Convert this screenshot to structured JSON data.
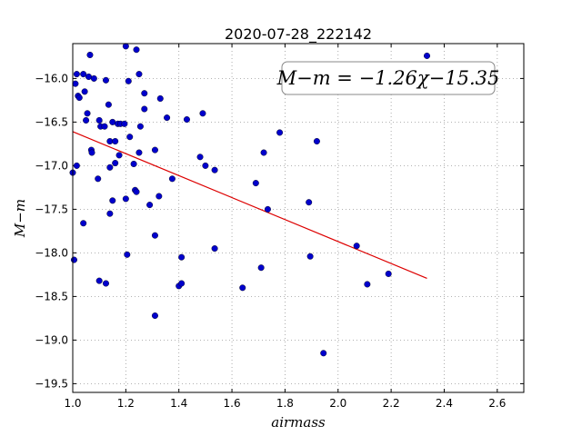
{
  "chart_data": {
    "type": "scatter",
    "title": "2020-07-28_222142",
    "xlabel": "airmass",
    "ylabel": "M−m",
    "xlim": [
      1.0,
      2.7
    ],
    "ylim": [
      -19.6,
      -15.6
    ],
    "x_ticks": [
      1.0,
      1.2,
      1.4,
      1.6,
      1.8,
      2.0,
      2.2,
      2.4,
      2.6
    ],
    "x_tick_labels": [
      "1.0",
      "1.2",
      "1.4",
      "1.6",
      "1.8",
      "2.0",
      "2.2",
      "2.4",
      "2.6"
    ],
    "y_ticks": [
      -16.0,
      -16.5,
      -17.0,
      -17.5,
      -18.0,
      -18.5,
      -19.0,
      -19.5
    ],
    "y_tick_labels": [
      "−16.0",
      "−16.5",
      "−17.0",
      "−17.5",
      "−18.0",
      "−18.5",
      "−19.0",
      "−19.5"
    ],
    "grid": true,
    "point_color": "#0000cc",
    "fit_color": "#dd0000",
    "annotation": "M−m = −1.26χ−15.35",
    "fit": {
      "slope": -1.26,
      "intercept": -15.35,
      "x_range": [
        1.0,
        2.335
      ]
    },
    "points": [
      [
        1.01,
        -16.06
      ],
      [
        1.015,
        -15.95
      ],
      [
        1.02,
        -16.2
      ],
      [
        1.025,
        -16.22
      ],
      [
        1.04,
        -15.95
      ],
      [
        1.045,
        -16.15
      ],
      [
        1.05,
        -16.48
      ],
      [
        1.055,
        -16.4
      ],
      [
        1.06,
        -15.98
      ],
      [
        1.065,
        -15.73
      ],
      [
        1.07,
        -16.82
      ],
      [
        1.072,
        -16.85
      ],
      [
        1.08,
        -16.0
      ],
      [
        1.1,
        -16.48
      ],
      [
        1.105,
        -16.55
      ],
      [
        1.12,
        -16.55
      ],
      [
        1.125,
        -16.02
      ],
      [
        1.135,
        -16.3
      ],
      [
        1.14,
        -16.72
      ],
      [
        1.15,
        -16.5
      ],
      [
        1.16,
        -16.72
      ],
      [
        1.17,
        -16.52
      ],
      [
        1.18,
        -16.52
      ],
      [
        1.195,
        -16.52
      ],
      [
        1.2,
        -15.63
      ],
      [
        1.21,
        -16.03
      ],
      [
        1.215,
        -16.67
      ],
      [
        1.24,
        -15.67
      ],
      [
        1.25,
        -15.95
      ],
      [
        1.255,
        -16.55
      ],
      [
        1.27,
        -16.35
      ],
      [
        1.27,
        -16.17
      ],
      [
        1.33,
        -16.23
      ],
      [
        1.355,
        -16.45
      ],
      [
        1.43,
        -16.47
      ],
      [
        1.49,
        -16.4
      ],
      [
        1.0,
        -17.08
      ],
      [
        1.015,
        -17.0
      ],
      [
        1.04,
        -17.66
      ],
      [
        1.095,
        -17.15
      ],
      [
        1.14,
        -17.02
      ],
      [
        1.15,
        -17.4
      ],
      [
        1.16,
        -16.97
      ],
      [
        1.175,
        -16.88
      ],
      [
        1.14,
        -17.55
      ],
      [
        1.2,
        -17.38
      ],
      [
        1.23,
        -16.98
      ],
      [
        1.235,
        -17.28
      ],
      [
        1.24,
        -17.3
      ],
      [
        1.25,
        -16.85
      ],
      [
        1.29,
        -17.45
      ],
      [
        1.31,
        -16.82
      ],
      [
        1.325,
        -17.35
      ],
      [
        1.375,
        -17.15
      ],
      [
        1.48,
        -16.9
      ],
      [
        1.5,
        -17.0
      ],
      [
        1.535,
        -17.05
      ],
      [
        1.69,
        -17.2
      ],
      [
        1.72,
        -16.85
      ],
      [
        1.78,
        -16.62
      ],
      [
        1.735,
        -17.5
      ],
      [
        1.89,
        -17.42
      ],
      [
        1.92,
        -16.72
      ],
      [
        1.005,
        -18.08
      ],
      [
        1.1,
        -18.32
      ],
      [
        1.125,
        -18.35
      ],
      [
        1.205,
        -18.02
      ],
      [
        1.31,
        -17.8
      ],
      [
        1.31,
        -18.72
      ],
      [
        1.4,
        -18.38
      ],
      [
        1.41,
        -18.35
      ],
      [
        1.41,
        -18.05
      ],
      [
        1.535,
        -17.95
      ],
      [
        1.64,
        -18.4
      ],
      [
        1.71,
        -18.17
      ],
      [
        1.895,
        -18.04
      ],
      [
        1.945,
        -19.15
      ],
      [
        2.07,
        -17.92
      ],
      [
        2.11,
        -18.36
      ],
      [
        2.19,
        -18.24
      ],
      [
        2.335,
        -15.74
      ]
    ]
  }
}
